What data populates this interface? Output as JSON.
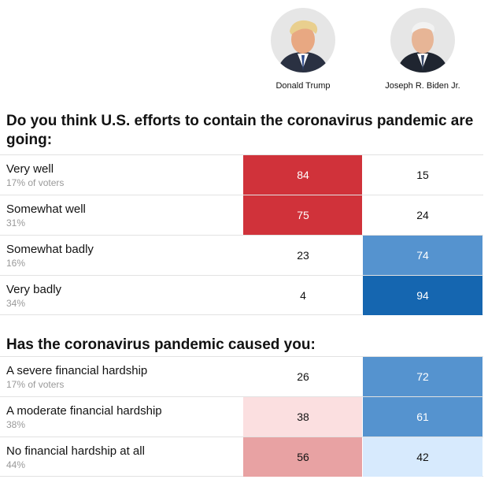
{
  "candidates": [
    {
      "name": "Donald Trump"
    },
    {
      "name": "Joseph R. Biden Jr."
    }
  ],
  "colors": {
    "trump_strong": "#d0323a",
    "trump_light": "#fbdfe0",
    "trump_mid": "#e8a2a3",
    "biden_strong": "#1566b0",
    "biden_mid": "#5593cf",
    "biden_light": "#d7eafd",
    "text_dark": "#121212",
    "text_light": "#ffffff"
  },
  "chart_data": [
    {
      "type": "table",
      "title": "Do you think U.S. efforts to contain the coronavirus pandemic are going:",
      "columns": [
        "Donald Trump",
        "Joseph R. Biden Jr."
      ],
      "rows": [
        {
          "label": "Very well",
          "share": "17% of voters",
          "values": [
            84,
            15
          ]
        },
        {
          "label": "Somewhat well",
          "share": "31%",
          "values": [
            75,
            24
          ]
        },
        {
          "label": "Somewhat badly",
          "share": "16%",
          "values": [
            23,
            74
          ]
        },
        {
          "label": "Very badly",
          "share": "34%",
          "values": [
            4,
            94
          ]
        }
      ]
    },
    {
      "type": "table",
      "title": "Has the coronavirus pandemic caused you:",
      "columns": [
        "Donald Trump",
        "Joseph R. Biden Jr."
      ],
      "rows": [
        {
          "label": "A severe financial hardship",
          "share": "17% of voters",
          "values": [
            26,
            72
          ]
        },
        {
          "label": "A moderate financial hardship",
          "share": "38%",
          "values": [
            38,
            61
          ]
        },
        {
          "label": "No financial hardship at all",
          "share": "44%",
          "values": [
            56,
            42
          ]
        }
      ]
    }
  ]
}
